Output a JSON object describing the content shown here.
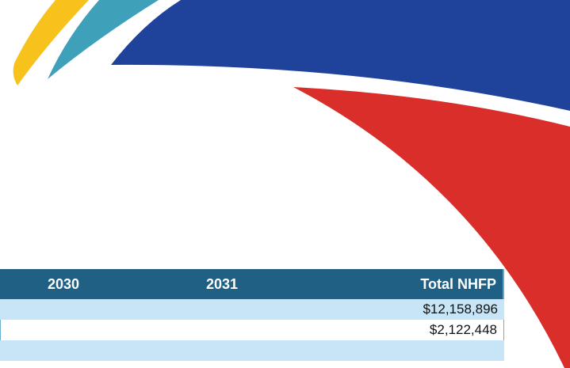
{
  "table": {
    "headers": [
      "2030",
      "2031",
      "Total NHFP"
    ],
    "rows": [
      {
        "total": "$12,158,896"
      },
      {
        "total": "$2,122,448"
      }
    ]
  }
}
